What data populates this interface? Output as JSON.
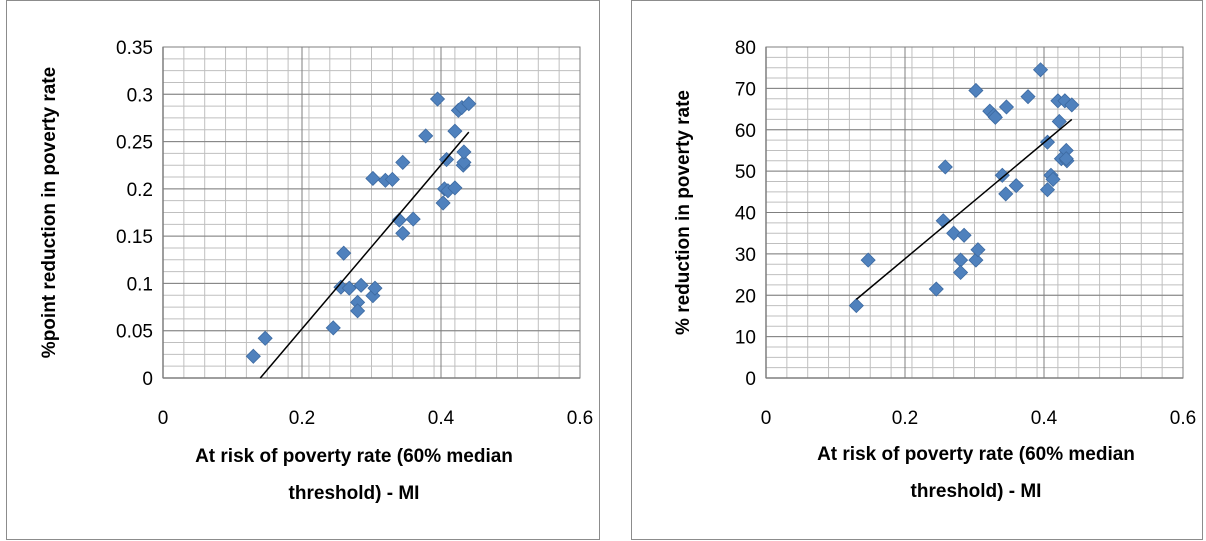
{
  "chart_data": [
    {
      "type": "scatter",
      "title": "",
      "xlabel": [
        "At risk of poverty rate (60% median",
        "threshold) - MI"
      ],
      "ylabel": "%point reduction in poverty rate",
      "xlim": [
        0,
        0.6
      ],
      "ylim": [
        0,
        0.35
      ],
      "xticks": [
        "0",
        "0.2",
        "0.4",
        "0.6"
      ],
      "yticks": [
        "0",
        "0.05",
        "0.1",
        "0.15",
        "0.2",
        "0.25",
        "0.3",
        "0.35"
      ],
      "grid": true,
      "marker_color": "#4F81BD",
      "trendline_color": "#000000",
      "trendline": {
        "x": [
          0.14,
          0.44
        ],
        "y": [
          0.0,
          0.26
        ]
      },
      "series": [
        {
          "x": [
            0.13,
            0.147,
            0.245,
            0.256,
            0.26,
            0.268,
            0.28,
            0.28,
            0.285,
            0.302,
            0.305,
            0.302,
            0.32,
            0.33,
            0.34,
            0.345,
            0.345,
            0.36,
            0.378,
            0.395,
            0.403,
            0.405,
            0.41,
            0.42,
            0.408,
            0.42,
            0.425,
            0.43,
            0.432,
            0.433,
            0.433,
            0.44
          ],
          "y": [
            0.023,
            0.042,
            0.053,
            0.096,
            0.132,
            0.095,
            0.08,
            0.071,
            0.098,
            0.087,
            0.095,
            0.211,
            0.209,
            0.21,
            0.167,
            0.153,
            0.228,
            0.168,
            0.256,
            0.295,
            0.185,
            0.2,
            0.198,
            0.201,
            0.231,
            0.261,
            0.283,
            0.286,
            0.225,
            0.228,
            0.239,
            0.29
          ]
        }
      ]
    },
    {
      "type": "scatter",
      "title": "",
      "xlabel": [
        "At risk of poverty rate (60% median",
        "threshold) - MI"
      ],
      "ylabel": "% reduction in poverty rate",
      "xlim": [
        0,
        0.6
      ],
      "ylim": [
        0,
        80
      ],
      "xticks": [
        "0",
        "0.2",
        "0.4",
        "0.6"
      ],
      "yticks": [
        "0",
        "10",
        "20",
        "30",
        "40",
        "50",
        "60",
        "70",
        "80"
      ],
      "grid": true,
      "marker_color": "#4F81BD",
      "trendline_color": "#000000",
      "trendline": {
        "x": [
          0.13,
          0.44
        ],
        "y": [
          19,
          62.5
        ]
      },
      "series": [
        {
          "x": [
            0.13,
            0.147,
            0.245,
            0.255,
            0.258,
            0.27,
            0.28,
            0.28,
            0.285,
            0.302,
            0.305,
            0.302,
            0.322,
            0.328,
            0.33,
            0.34,
            0.345,
            0.346,
            0.36,
            0.377,
            0.395,
            0.405,
            0.405,
            0.41,
            0.413,
            0.42,
            0.422,
            0.425,
            0.43,
            0.432,
            0.433,
            0.432,
            0.44
          ],
          "y": [
            17.5,
            28.5,
            21.5,
            38,
            51,
            35,
            28.5,
            25.5,
            34.5,
            28.5,
            31,
            69.5,
            64.5,
            63.5,
            63,
            49,
            44.5,
            65.5,
            46.5,
            68,
            74.5,
            57,
            45.5,
            49,
            48,
            67,
            62,
            53,
            67,
            55,
            52.5,
            53,
            66
          ]
        }
      ]
    }
  ]
}
